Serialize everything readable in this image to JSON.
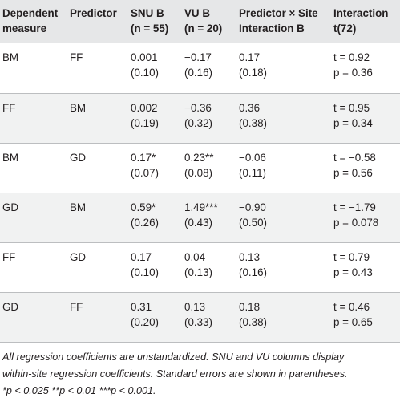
{
  "table": {
    "headers": [
      [
        "Dependent",
        "measure"
      ],
      [
        "Predictor"
      ],
      [
        "SNU B",
        "(n = 55)"
      ],
      [
        "VU B",
        "(n = 20)"
      ],
      [
        "Predictor × Site",
        "Interaction B"
      ],
      [
        "Interaction",
        "t(72)"
      ]
    ],
    "rows": [
      {
        "dv": "BM",
        "predictor": "FF",
        "snu": [
          "0.001",
          "(0.10)"
        ],
        "vu": [
          "−0.17",
          "(0.16)"
        ],
        "interaction_b": [
          "0.17",
          "(0.18)"
        ],
        "interaction_t": [
          "t = 0.92",
          "p = 0.36"
        ]
      },
      {
        "dv": "FF",
        "predictor": "BM",
        "snu": [
          "0.002",
          "(0.19)"
        ],
        "vu": [
          "−0.36",
          "(0.32)"
        ],
        "interaction_b": [
          "0.36",
          "(0.38)"
        ],
        "interaction_t": [
          "t = 0.95",
          "p = 0.34"
        ]
      },
      {
        "dv": "BM",
        "predictor": "GD",
        "snu": [
          "0.17*",
          "(0.07)"
        ],
        "vu": [
          "0.23**",
          "(0.08)"
        ],
        "interaction_b": [
          "−0.06",
          "(0.11)"
        ],
        "interaction_t": [
          "t = −0.58",
          "p = 0.56"
        ]
      },
      {
        "dv": "GD",
        "predictor": "BM",
        "snu": [
          "0.59*",
          "(0.26)"
        ],
        "vu": [
          "1.49***",
          "(0.43)"
        ],
        "interaction_b": [
          "−0.90",
          "(0.50)"
        ],
        "interaction_t": [
          "t = −1.79",
          "p = 0.078"
        ]
      },
      {
        "dv": "FF",
        "predictor": "GD",
        "snu": [
          "0.17",
          "(0.10)"
        ],
        "vu": [
          "0.04",
          "(0.13)"
        ],
        "interaction_b": [
          "0.13",
          "(0.16)"
        ],
        "interaction_t": [
          "t = 0.79",
          "p = 0.43"
        ]
      },
      {
        "dv": "GD",
        "predictor": "FF",
        "snu": [
          "0.31",
          "(0.20)"
        ],
        "vu": [
          "0.13",
          "(0.33)"
        ],
        "interaction_b": [
          "0.18",
          "(0.38)"
        ],
        "interaction_t": [
          "t = 0.46",
          "p = 0.65"
        ]
      }
    ]
  },
  "footnote": [
    "All regression coefficients are unstandardized. SNU and VU columns display",
    "within-site regression coefficients. Standard errors are shown in parentheses.",
    "*p < 0.025 **p < 0.01 ***p < 0.001."
  ]
}
